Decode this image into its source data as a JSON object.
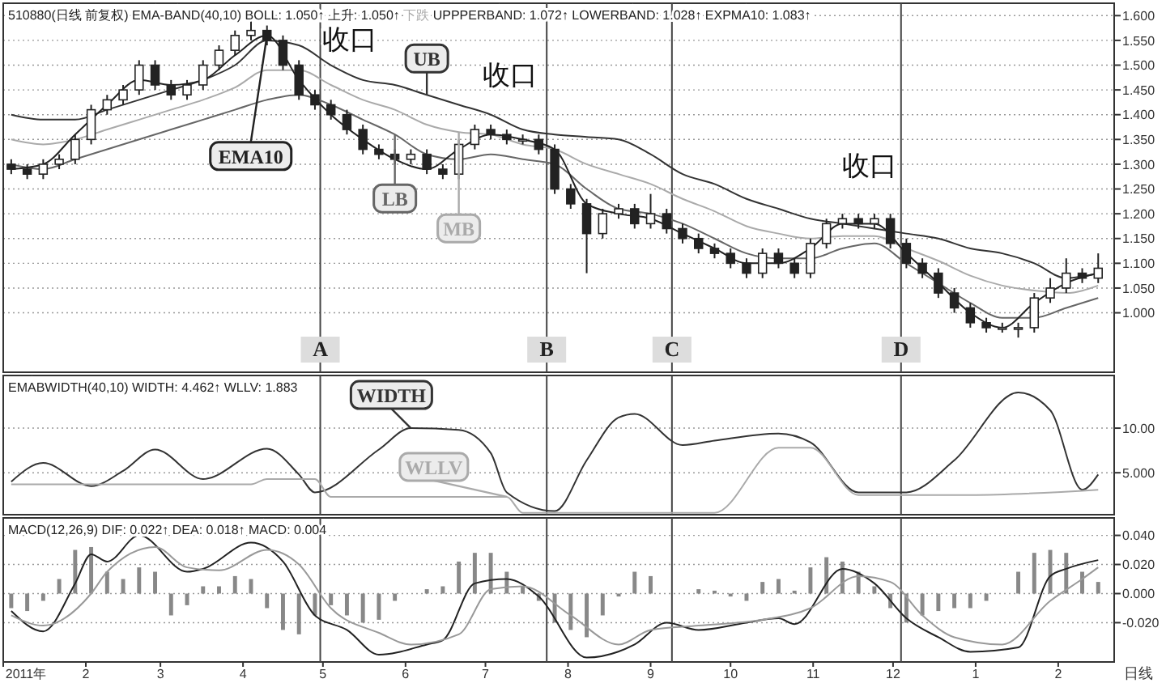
{
  "chart_data": [
    {
      "type": "candlestick",
      "annotations": [
        "510880(日线 前复权)",
        "EMA-BAND(40,10)",
        "BOLL: 1.050↑",
        "上升: 1.050↑",
        "下跌",
        "UPPPERBAND: 1.072↑",
        "LOWERBAND: 1.028↑",
        "EXPMA10: 1.083↑",
        "收口",
        "收口",
        "收口"
      ],
      "x": [
        "2011-01-04",
        "2011-01-10",
        "2011-01-16",
        "2011-01-22",
        "2011-01-28",
        "2011-02-03",
        "2011-02-09",
        "2011-02-15",
        "2011-02-21",
        "2011-02-27",
        "2011-03-05",
        "2011-03-11",
        "2011-03-17",
        "2011-03-23",
        "2011-03-29",
        "2011-04-04",
        "2011-04-10",
        "2011-04-16",
        "2011-04-22",
        "2011-04-28",
        "2011-05-04",
        "2011-05-10",
        "2011-05-16",
        "2011-05-22",
        "2011-05-28",
        "2011-06-03",
        "2011-06-09",
        "2011-06-15",
        "2011-06-21",
        "2011-06-27",
        "2011-07-03",
        "2011-07-09",
        "2011-07-15",
        "2011-07-21",
        "2011-07-27",
        "2011-08-02",
        "2011-08-08",
        "2011-08-14",
        "2011-08-20",
        "2011-08-26",
        "2011-09-01",
        "2011-09-07",
        "2011-09-13",
        "2011-09-19",
        "2011-09-25",
        "2011-10-01",
        "2011-10-07",
        "2011-10-13",
        "2011-10-19",
        "2011-10-25",
        "2011-10-31",
        "2011-11-06",
        "2011-11-12",
        "2011-11-18",
        "2011-11-24",
        "2011-11-30",
        "2011-12-06",
        "2011-12-12",
        "2011-12-18",
        "2011-12-24",
        "2011-12-30",
        "2012-01-05",
        "2012-01-11",
        "2012-01-17",
        "2012-01-23",
        "2012-01-29",
        "2012-02-04",
        "2012-02-10",
        "2012-02-16"
      ],
      "ohlc": [
        [
          1.3,
          1.31,
          1.28,
          1.29
        ],
        [
          1.29,
          1.3,
          1.27,
          1.28
        ],
        [
          1.28,
          1.31,
          1.27,
          1.3
        ],
        [
          1.3,
          1.32,
          1.29,
          1.31
        ],
        [
          1.31,
          1.36,
          1.3,
          1.35
        ],
        [
          1.35,
          1.42,
          1.34,
          1.41
        ],
        [
          1.41,
          1.44,
          1.4,
          1.43
        ],
        [
          1.43,
          1.46,
          1.42,
          1.45
        ],
        [
          1.45,
          1.51,
          1.44,
          1.5
        ],
        [
          1.5,
          1.51,
          1.45,
          1.46
        ],
        [
          1.46,
          1.47,
          1.43,
          1.44
        ],
        [
          1.44,
          1.47,
          1.43,
          1.46
        ],
        [
          1.46,
          1.51,
          1.45,
          1.5
        ],
        [
          1.5,
          1.54,
          1.49,
          1.53
        ],
        [
          1.53,
          1.57,
          1.52,
          1.56
        ],
        [
          1.56,
          1.59,
          1.55,
          1.57
        ],
        [
          1.57,
          1.58,
          1.54,
          1.55
        ],
        [
          1.55,
          1.56,
          1.49,
          1.5
        ],
        [
          1.5,
          1.51,
          1.43,
          1.44
        ],
        [
          1.44,
          1.45,
          1.41,
          1.42
        ],
        [
          1.42,
          1.43,
          1.39,
          1.4
        ],
        [
          1.4,
          1.41,
          1.36,
          1.37
        ],
        [
          1.37,
          1.38,
          1.32,
          1.33
        ],
        [
          1.33,
          1.34,
          1.31,
          1.32
        ],
        [
          1.32,
          1.33,
          1.3,
          1.31
        ],
        [
          1.31,
          1.33,
          1.3,
          1.32
        ],
        [
          1.32,
          1.33,
          1.28,
          1.29
        ],
        [
          1.29,
          1.3,
          1.27,
          1.28
        ],
        [
          1.28,
          1.35,
          1.27,
          1.34
        ],
        [
          1.34,
          1.38,
          1.33,
          1.37
        ],
        [
          1.37,
          1.38,
          1.35,
          1.36
        ],
        [
          1.36,
          1.37,
          1.34,
          1.35
        ],
        [
          1.35,
          1.36,
          1.34,
          1.35
        ],
        [
          1.35,
          1.36,
          1.32,
          1.33
        ],
        [
          1.33,
          1.34,
          1.24,
          1.25
        ],
        [
          1.25,
          1.26,
          1.21,
          1.22
        ],
        [
          1.22,
          1.23,
          1.08,
          1.16
        ],
        [
          1.16,
          1.21,
          1.15,
          1.2
        ],
        [
          1.2,
          1.22,
          1.19,
          1.21
        ],
        [
          1.21,
          1.22,
          1.17,
          1.18
        ],
        [
          1.18,
          1.24,
          1.17,
          1.2
        ],
        [
          1.2,
          1.21,
          1.16,
          1.17
        ],
        [
          1.17,
          1.18,
          1.14,
          1.15
        ],
        [
          1.15,
          1.16,
          1.12,
          1.13
        ],
        [
          1.13,
          1.14,
          1.11,
          1.12
        ],
        [
          1.12,
          1.13,
          1.09,
          1.1
        ],
        [
          1.1,
          1.11,
          1.07,
          1.08
        ],
        [
          1.08,
          1.13,
          1.07,
          1.12
        ],
        [
          1.12,
          1.13,
          1.09,
          1.1
        ],
        [
          1.1,
          1.11,
          1.07,
          1.08
        ],
        [
          1.08,
          1.15,
          1.07,
          1.14
        ],
        [
          1.14,
          1.19,
          1.13,
          1.18
        ],
        [
          1.18,
          1.2,
          1.17,
          1.19
        ],
        [
          1.19,
          1.2,
          1.17,
          1.18
        ],
        [
          1.18,
          1.2,
          1.17,
          1.19
        ],
        [
          1.19,
          1.2,
          1.13,
          1.14
        ],
        [
          1.14,
          1.15,
          1.09,
          1.1
        ],
        [
          1.1,
          1.11,
          1.07,
          1.08
        ],
        [
          1.08,
          1.09,
          1.03,
          1.04
        ],
        [
          1.04,
          1.05,
          1.0,
          1.01
        ],
        [
          1.01,
          1.02,
          0.97,
          0.98
        ],
        [
          0.98,
          0.99,
          0.96,
          0.97
        ],
        [
          0.97,
          0.98,
          0.96,
          0.97
        ],
        [
          0.97,
          0.98,
          0.95,
          0.97
        ],
        [
          0.97,
          1.04,
          0.96,
          1.03
        ],
        [
          1.03,
          1.07,
          1.02,
          1.05
        ],
        [
          1.05,
          1.11,
          1.04,
          1.08
        ],
        [
          1.08,
          1.09,
          1.06,
          1.07
        ],
        [
          1.07,
          1.12,
          1.06,
          1.09
        ]
      ],
      "color": "#222222",
      "series": [
        {
          "name": "UB",
          "type": "line",
          "color": "#333333",
          "x": [
            "2011-01-04",
            "2011-01-16",
            "2011-01-28",
            "2011-02-09",
            "2011-02-21",
            "2011-03-05",
            "2011-03-17",
            "2011-03-29",
            "2011-04-10",
            "2011-04-22",
            "2011-05-04",
            "2011-05-16",
            "2011-05-28",
            "2011-06-09",
            "2011-06-21",
            "2011-07-03",
            "2011-07-15",
            "2011-07-27",
            "2011-08-08",
            "2011-08-20",
            "2011-09-01",
            "2011-09-13",
            "2011-09-25",
            "2011-10-07",
            "2011-10-19",
            "2011-10-31",
            "2011-11-12",
            "2011-11-24",
            "2011-12-06",
            "2011-12-18",
            "2011-12-30",
            "2012-01-11",
            "2012-01-23",
            "2012-02-04",
            "2012-02-16"
          ],
          "values": [
            1.4,
            1.39,
            1.39,
            1.41,
            1.43,
            1.45,
            1.47,
            1.5,
            1.55,
            1.54,
            1.5,
            1.47,
            1.46,
            1.44,
            1.42,
            1.4,
            1.37,
            1.36,
            1.355,
            1.35,
            1.32,
            1.28,
            1.26,
            1.23,
            1.21,
            1.19,
            1.18,
            1.17,
            1.16,
            1.15,
            1.13,
            1.12,
            1.1,
            1.07,
            1.08
          ]
        },
        {
          "name": "MB",
          "type": "line",
          "color": "#aaaaaa",
          "x": [
            "2011-01-04",
            "2011-01-16",
            "2011-01-28",
            "2011-02-09",
            "2011-02-21",
            "2011-03-05",
            "2011-03-17",
            "2011-03-29",
            "2011-04-10",
            "2011-04-22",
            "2011-05-04",
            "2011-05-16",
            "2011-05-28",
            "2011-06-09",
            "2011-06-21",
            "2011-07-03",
            "2011-07-15",
            "2011-07-27",
            "2011-08-08",
            "2011-08-20",
            "2011-09-01",
            "2011-09-13",
            "2011-09-25",
            "2011-10-07",
            "2011-10-19",
            "2011-10-31",
            "2011-11-12",
            "2011-11-24",
            "2011-12-06",
            "2011-12-18",
            "2011-12-30",
            "2012-01-11",
            "2012-01-23",
            "2012-02-04",
            "2012-02-16"
          ],
          "values": [
            1.35,
            1.34,
            1.35,
            1.37,
            1.39,
            1.41,
            1.43,
            1.455,
            1.49,
            1.49,
            1.46,
            1.43,
            1.41,
            1.38,
            1.365,
            1.36,
            1.34,
            1.33,
            1.3,
            1.28,
            1.26,
            1.23,
            1.205,
            1.175,
            1.16,
            1.15,
            1.155,
            1.155,
            1.13,
            1.105,
            1.075,
            1.055,
            1.045,
            1.04,
            1.055
          ]
        },
        {
          "name": "LB",
          "type": "line",
          "color": "#666666",
          "x": [
            "2011-01-04",
            "2011-01-16",
            "2011-01-28",
            "2011-02-09",
            "2011-02-21",
            "2011-03-05",
            "2011-03-17",
            "2011-03-29",
            "2011-04-10",
            "2011-04-22",
            "2011-05-04",
            "2011-05-16",
            "2011-05-28",
            "2011-06-09",
            "2011-06-21",
            "2011-07-03",
            "2011-07-15",
            "2011-07-27",
            "2011-08-08",
            "2011-08-20",
            "2011-09-01",
            "2011-09-13",
            "2011-09-25",
            "2011-10-07",
            "2011-10-19",
            "2011-10-31",
            "2011-11-12",
            "2011-11-24",
            "2011-12-06",
            "2011-12-18",
            "2011-12-30",
            "2012-01-11",
            "2012-01-23",
            "2012-02-04",
            "2012-02-16"
          ],
          "values": [
            1.3,
            1.29,
            1.31,
            1.33,
            1.35,
            1.37,
            1.39,
            1.41,
            1.43,
            1.44,
            1.42,
            1.39,
            1.36,
            1.32,
            1.31,
            1.32,
            1.31,
            1.3,
            1.25,
            1.21,
            1.2,
            1.18,
            1.15,
            1.12,
            1.11,
            1.11,
            1.13,
            1.14,
            1.1,
            1.06,
            1.02,
            0.99,
            0.99,
            1.01,
            1.03
          ]
        },
        {
          "name": "EMA10",
          "type": "line",
          "color": "#222222",
          "x": [
            "2011-01-04",
            "2011-01-16",
            "2011-01-28",
            "2011-02-09",
            "2011-02-21",
            "2011-03-05",
            "2011-03-17",
            "2011-03-29",
            "2011-04-10",
            "2011-04-22",
            "2011-05-04",
            "2011-05-16",
            "2011-05-28",
            "2011-06-09",
            "2011-06-21",
            "2011-07-03",
            "2011-07-15",
            "2011-07-27",
            "2011-08-08",
            "2011-08-20",
            "2011-09-01",
            "2011-09-13",
            "2011-09-25",
            "2011-10-07",
            "2011-10-19",
            "2011-10-31",
            "2011-11-12",
            "2011-11-24",
            "2011-12-06",
            "2011-12-18",
            "2011-12-30",
            "2012-01-11",
            "2012-01-23",
            "2012-02-04",
            "2012-02-16"
          ],
          "values": [
            1.29,
            1.3,
            1.36,
            1.42,
            1.47,
            1.46,
            1.47,
            1.52,
            1.56,
            1.47,
            1.4,
            1.35,
            1.31,
            1.29,
            1.33,
            1.36,
            1.35,
            1.33,
            1.22,
            1.2,
            1.19,
            1.16,
            1.13,
            1.1,
            1.1,
            1.13,
            1.18,
            1.18,
            1.12,
            1.06,
            1.0,
            0.97,
            1.02,
            1.06,
            1.08
          ]
        }
      ],
      "xlim": [
        "2011-01-01",
        "2012-02-22"
      ],
      "ylim": [
        0.88,
        1.625
      ],
      "yticks": [
        {
          "value": 1.0,
          "label": "1.000"
        },
        {
          "value": 1.05,
          "label": "1.050"
        },
        {
          "value": 1.1,
          "label": "1.100"
        },
        {
          "value": 1.15,
          "label": "1.150"
        },
        {
          "value": 1.2,
          "label": "1.200"
        },
        {
          "value": 1.25,
          "label": "1.250"
        },
        {
          "value": 1.3,
          "label": "1.300"
        },
        {
          "value": 1.35,
          "label": "1.350"
        },
        {
          "value": 1.4,
          "label": "1.400"
        },
        {
          "value": 1.45,
          "label": "1.450"
        },
        {
          "value": 1.5,
          "label": "1.500"
        },
        {
          "value": 1.55,
          "label": "1.550"
        },
        {
          "value": 1.6,
          "label": "1.600"
        }
      ],
      "ref_lines": [
        {
          "axis": "x",
          "value": "2011-04-30",
          "label": "A"
        },
        {
          "axis": "x",
          "value": "2011-07-24",
          "label": "B"
        },
        {
          "axis": "x",
          "value": "2011-09-09",
          "label": "C"
        },
        {
          "axis": "x",
          "value": "2011-12-04",
          "label": "D"
        }
      ],
      "grid": "y",
      "tick_labels": "y"
    },
    {
      "type": "line",
      "annotations": [
        "EMABWIDTH(40,10)",
        "WIDTH: 4.462↑",
        "WLLV: 1.883"
      ],
      "series": [
        {
          "name": "WIDTH",
          "color": "#333333",
          "x": [
            "2011-01-04",
            "2011-01-16",
            "2011-02-03",
            "2011-02-15",
            "2011-02-27",
            "2011-03-17",
            "2011-04-10",
            "2011-04-22",
            "2011-04-28",
            "2011-05-22",
            "2011-06-03",
            "2011-06-21",
            "2011-07-03",
            "2011-07-09",
            "2011-07-27",
            "2011-08-08",
            "2011-08-20",
            "2011-08-26",
            "2011-09-13",
            "2011-09-25",
            "2011-10-19",
            "2011-10-31",
            "2011-11-18",
            "2011-11-30",
            "2011-12-06",
            "2011-12-24",
            "2012-01-17",
            "2012-01-29",
            "2012-02-10",
            "2012-02-16"
          ],
          "values": [
            4.0,
            6.1,
            3.5,
            5.2,
            7.6,
            4.3,
            7.7,
            4.8,
            2.8,
            7.6,
            10.0,
            9.8,
            7.2,
            2.8,
            0.7,
            6.4,
            11.2,
            11.6,
            8.1,
            8.6,
            9.4,
            8.4,
            2.8,
            2.8,
            2.8,
            6.4,
            14.0,
            12.0,
            3.1,
            4.8
          ]
        },
        {
          "name": "WLLV",
          "color": "#aaaaaa",
          "x": [
            "2011-01-04",
            "2011-04-04",
            "2011-04-10",
            "2011-04-28",
            "2011-05-04",
            "2011-07-09",
            "2011-07-15",
            "2011-09-25",
            "2011-10-19",
            "2011-10-31",
            "2011-11-18",
            "2011-12-30",
            "2012-02-16"
          ],
          "values": [
            3.7,
            3.7,
            4.3,
            4.3,
            2.3,
            2.3,
            0.5,
            0.5,
            7.8,
            7.8,
            2.5,
            2.5,
            3.1
          ]
        }
      ],
      "xlim": [
        "2011-01-01",
        "2012-02-22"
      ],
      "ylim": [
        0.3,
        15.9
      ],
      "yticks": [
        {
          "value": 5,
          "label": "5.000"
        },
        {
          "value": 10,
          "label": "10.00"
        }
      ],
      "ref_lines": [
        {
          "axis": "x",
          "value": "2011-04-30"
        },
        {
          "axis": "x",
          "value": "2011-07-24"
        },
        {
          "axis": "x",
          "value": "2011-09-09"
        },
        {
          "axis": "x",
          "value": "2011-12-04"
        }
      ],
      "grid": "y",
      "tick_labels": "y"
    },
    {
      "type": "line",
      "annotations": [
        "MACD(12,26,9)",
        "DIF: 0.022↑",
        "DEA: 0.018↑",
        "MACD: 0.004"
      ],
      "xlabel": "日线",
      "series": [
        {
          "type": "bar",
          "color": "#888888",
          "x": [
            "2011-01-04",
            "2011-01-10",
            "2011-01-16",
            "2011-01-22",
            "2011-01-28",
            "2011-02-03",
            "2011-02-09",
            "2011-02-15",
            "2011-02-21",
            "2011-02-27",
            "2011-03-05",
            "2011-03-11",
            "2011-03-17",
            "2011-03-23",
            "2011-03-29",
            "2011-04-04",
            "2011-04-10",
            "2011-04-16",
            "2011-04-22",
            "2011-04-28",
            "2011-05-04",
            "2011-05-10",
            "2011-05-16",
            "2011-05-22",
            "2011-05-28",
            "2011-06-03",
            "2011-06-09",
            "2011-06-15",
            "2011-06-21",
            "2011-06-27",
            "2011-07-03",
            "2011-07-09",
            "2011-07-15",
            "2011-07-21",
            "2011-07-27",
            "2011-08-02",
            "2011-08-08",
            "2011-08-14",
            "2011-08-20",
            "2011-08-26",
            "2011-09-01",
            "2011-09-07",
            "2011-09-13",
            "2011-09-19",
            "2011-09-25",
            "2011-10-01",
            "2011-10-07",
            "2011-10-13",
            "2011-10-19",
            "2011-10-25",
            "2011-10-31",
            "2011-11-06",
            "2011-11-12",
            "2011-11-18",
            "2011-11-24",
            "2011-11-30",
            "2011-12-06",
            "2011-12-12",
            "2011-12-18",
            "2011-12-24",
            "2011-12-30",
            "2012-01-05",
            "2012-01-11",
            "2012-01-17",
            "2012-01-23",
            "2012-01-29",
            "2012-02-04",
            "2012-02-10",
            "2012-02-16"
          ],
          "values": [
            -0.01,
            -0.012,
            -0.005,
            0.01,
            0.03,
            0.032,
            0.015,
            0.01,
            0.018,
            0.015,
            -0.015,
            -0.008,
            0.005,
            0.005,
            0.012,
            0.01,
            -0.01,
            -0.025,
            -0.028,
            -0.015,
            -0.008,
            -0.015,
            -0.02,
            -0.018,
            -0.005,
            0.0,
            0.003,
            0.005,
            0.022,
            0.028,
            0.028,
            0.015,
            0.005,
            -0.005,
            -0.02,
            -0.025,
            -0.03,
            -0.015,
            -0.002,
            0.015,
            0.012,
            0.0,
            0.0,
            0.003,
            0.002,
            -0.002,
            -0.005,
            0.008,
            0.01,
            0.002,
            0.018,
            0.025,
            0.022,
            0.015,
            0.005,
            -0.01,
            -0.02,
            -0.015,
            -0.012,
            -0.01,
            -0.01,
            -0.005,
            0.0,
            0.015,
            0.028,
            0.03,
            0.028,
            0.015,
            0.008
          ]
        },
        {
          "type": "line",
          "color": "#222222",
          "x": [
            "2011-01-04",
            "2011-01-16",
            "2011-01-28",
            "2011-02-03",
            "2011-02-09",
            "2011-02-21",
            "2011-03-11",
            "2011-03-17",
            "2011-04-04",
            "2011-04-16",
            "2011-04-28",
            "2011-05-10",
            "2011-05-22",
            "2011-06-09",
            "2011-06-15",
            "2011-06-27",
            "2011-07-09",
            "2011-07-21",
            "2011-08-08",
            "2011-08-26",
            "2011-09-07",
            "2011-09-19",
            "2011-10-07",
            "2011-10-19",
            "2011-10-25",
            "2011-11-12",
            "2011-11-24",
            "2011-12-06",
            "2011-12-18",
            "2011-12-30",
            "2012-01-17",
            "2012-01-29",
            "2012-02-04",
            "2012-02-16"
          ],
          "values": [
            -0.012,
            -0.026,
            0.007,
            0.027,
            0.022,
            0.04,
            0.015,
            0.017,
            0.035,
            0.022,
            -0.015,
            -0.025,
            -0.042,
            -0.035,
            -0.032,
            0.007,
            0.01,
            -0.002,
            -0.044,
            -0.035,
            -0.02,
            -0.025,
            -0.02,
            -0.017,
            -0.021,
            0.017,
            0.007,
            -0.017,
            -0.03,
            -0.04,
            -0.037,
            0.012,
            0.017,
            0.023
          ]
        },
        {
          "type": "line",
          "color": "#999999",
          "x": [
            "2011-01-04",
            "2011-01-16",
            "2011-02-03",
            "2011-02-09",
            "2011-02-27",
            "2011-03-11",
            "2011-03-23",
            "2011-04-10",
            "2011-04-22",
            "2011-05-04",
            "2011-05-22",
            "2011-06-03",
            "2011-06-21",
            "2011-07-03",
            "2011-07-15",
            "2011-08-02",
            "2011-08-20",
            "2011-09-01",
            "2011-09-19",
            "2011-10-13",
            "2011-10-31",
            "2011-11-18",
            "2011-11-30",
            "2011-12-12",
            "2011-12-24",
            "2012-01-11",
            "2012-01-29",
            "2012-02-10",
            "2012-02-16"
          ],
          "values": [
            -0.015,
            -0.022,
            0.0,
            0.015,
            0.032,
            0.018,
            0.016,
            0.03,
            0.02,
            -0.01,
            -0.027,
            -0.035,
            -0.028,
            0.003,
            0.005,
            -0.015,
            -0.035,
            -0.025,
            -0.022,
            -0.018,
            -0.01,
            0.012,
            0.008,
            -0.015,
            -0.03,
            -0.035,
            -0.005,
            0.01,
            0.018
          ]
        }
      ],
      "xlim": [
        "2011-01-01",
        "2012-02-22"
      ],
      "ylim": [
        -0.047,
        0.052
      ],
      "xticks": [
        {
          "value": "2011-01-01",
          "label": "2011年"
        },
        {
          "value": "2011-02-01",
          "label": "2"
        },
        {
          "value": "2011-03-01",
          "label": "3"
        },
        {
          "value": "2011-04-01",
          "label": "4"
        },
        {
          "value": "2011-05-01",
          "label": "5"
        },
        {
          "value": "2011-06-01",
          "label": "6"
        },
        {
          "value": "2011-07-01",
          "label": "7"
        },
        {
          "value": "2011-08-01",
          "label": "8"
        },
        {
          "value": "2011-09-01",
          "label": "9"
        },
        {
          "value": "2011-10-01",
          "label": "10"
        },
        {
          "value": "2011-11-01",
          "label": "11"
        },
        {
          "value": "2011-12-01",
          "label": "12"
        },
        {
          "value": "2012-01-01",
          "label": "1"
        },
        {
          "value": "2012-02-01",
          "label": "2"
        }
      ],
      "yticks": [
        {
          "value": -0.02,
          "label": "-0.020"
        },
        {
          "value": 0,
          "label": "0.000"
        },
        {
          "value": 0.02,
          "label": "0.020"
        },
        {
          "value": 0.04,
          "label": "0.040"
        }
      ],
      "ref_lines": [
        {
          "axis": "x",
          "value": "2011-04-30"
        },
        {
          "axis": "x",
          "value": "2011-07-24"
        },
        {
          "axis": "x",
          "value": "2011-09-09"
        },
        {
          "axis": "x",
          "value": "2011-12-04"
        }
      ],
      "grid": "y"
    }
  ]
}
